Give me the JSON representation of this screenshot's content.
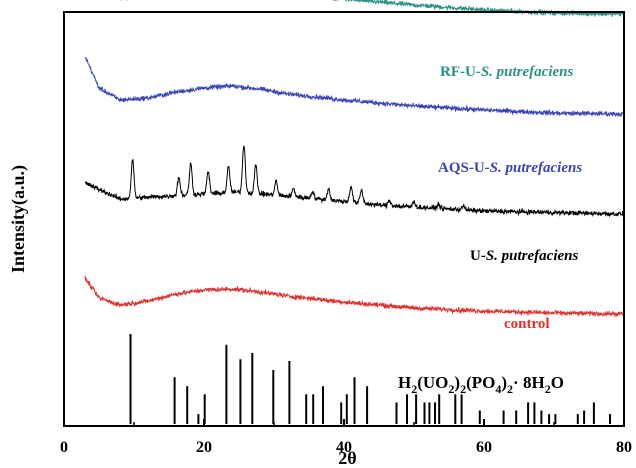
{
  "chart_data": {
    "type": "line",
    "xlabel": "2θ",
    "ylabel": "Intensity(a.u.)",
    "xlim": [
      0,
      80
    ],
    "xticks": [
      0,
      20,
      40,
      60,
      80
    ],
    "x_range_measured": [
      3,
      80
    ],
    "y_units": "arbitrary",
    "grid": false,
    "legend": "inline labels at right of each curve",
    "series": [
      {
        "name": "RF-U-S. putrefaciens",
        "label_parts": [
          "RF-U-",
          "S. putrefaciens"
        ],
        "color": "#2a9187",
        "profile": "amorphous",
        "offset": 3.0,
        "x": [
          3,
          5,
          8,
          12,
          16,
          20,
          24,
          28,
          32,
          40,
          50,
          60,
          70,
          80
        ],
        "values": [
          0.62,
          0.32,
          0.2,
          0.23,
          0.3,
          0.35,
          0.34,
          0.3,
          0.25,
          0.19,
          0.13,
          0.08,
          0.05,
          0.04
        ]
      },
      {
        "name": "AQS-U-S. putrefaciens",
        "label_parts": [
          "AQS-U-",
          "S. putrefaciens"
        ],
        "color": "#3a46b4",
        "profile": "amorphous",
        "offset": 2.0,
        "x": [
          3,
          5,
          8,
          12,
          16,
          20,
          24,
          28,
          32,
          40,
          50,
          60,
          70,
          80
        ],
        "values": [
          0.62,
          0.3,
          0.18,
          0.2,
          0.26,
          0.3,
          0.32,
          0.29,
          0.24,
          0.18,
          0.12,
          0.08,
          0.05,
          0.04
        ]
      },
      {
        "name": "U-S. putrefaciens",
        "label_parts": [
          "U-",
          "S. putrefaciens"
        ],
        "color": "#000000",
        "profile": "crystalline",
        "offset": 1.0,
        "x": [
          3,
          8,
          15,
          25,
          35,
          45,
          60,
          80
        ],
        "values": [
          0.35,
          0.19,
          0.22,
          0.26,
          0.2,
          0.13,
          0.07,
          0.04
        ],
        "peaks": [
          {
            "x": 9.8,
            "height": 0.38
          },
          {
            "x": 16.4,
            "height": 0.18
          },
          {
            "x": 18.1,
            "height": 0.31
          },
          {
            "x": 20.6,
            "height": 0.22
          },
          {
            "x": 23.5,
            "height": 0.26
          },
          {
            "x": 25.7,
            "height": 0.48
          },
          {
            "x": 27.4,
            "height": 0.28
          },
          {
            "x": 30.3,
            "height": 0.14
          },
          {
            "x": 32.8,
            "height": 0.08
          },
          {
            "x": 35.5,
            "height": 0.07
          },
          {
            "x": 37.8,
            "height": 0.11
          },
          {
            "x": 41.0,
            "height": 0.16
          },
          {
            "x": 42.5,
            "height": 0.13
          },
          {
            "x": 46.5,
            "height": 0.05
          },
          {
            "x": 50.0,
            "height": 0.05
          },
          {
            "x": 53.5,
            "height": 0.04
          },
          {
            "x": 57.0,
            "height": 0.04
          }
        ]
      },
      {
        "name": "control",
        "label_parts": [
          "control",
          ""
        ],
        "color": "#e03030",
        "profile": "amorphous",
        "offset": 0.0,
        "x": [
          3,
          5,
          8,
          12,
          16,
          20,
          24,
          28,
          32,
          40,
          50,
          60,
          70,
          80
        ],
        "values": [
          0.4,
          0.2,
          0.13,
          0.17,
          0.24,
          0.28,
          0.29,
          0.26,
          0.22,
          0.16,
          0.1,
          0.07,
          0.05,
          0.04
        ]
      }
    ],
    "reference_pattern": {
      "name": "H2(UO2)2(PO4)2·8H2O",
      "label_parts": [
        "H",
        "2",
        "(UO",
        "2",
        ")",
        "2",
        "(PO",
        "4",
        ")",
        "2",
        "·  8H",
        "2",
        "O"
      ],
      "color": "#000000",
      "type": "stick",
      "positions": [
        9.5,
        15.8,
        17.6,
        19.2,
        20.1,
        23.2,
        25.2,
        26.9,
        29.9,
        32.2,
        34.6,
        35.6,
        37.0,
        39.6,
        40.4,
        41.5,
        43.3,
        47.5,
        49.0,
        50.3,
        51.5,
        52.2,
        53.0,
        53.6,
        55.9,
        56.8,
        59.4,
        62.8,
        64.6,
        66.3,
        67.2,
        68.2,
        69.3,
        70.2,
        73.4,
        74.3,
        75.7,
        78.0
      ],
      "intensities": [
        1.0,
        0.52,
        0.42,
        0.11,
        0.33,
        0.88,
        0.72,
        0.79,
        0.6,
        0.7,
        0.33,
        0.33,
        0.42,
        0.24,
        0.33,
        0.52,
        0.42,
        0.24,
        0.33,
        0.33,
        0.24,
        0.24,
        0.24,
        0.33,
        0.33,
        0.33,
        0.15,
        0.15,
        0.15,
        0.24,
        0.24,
        0.15,
        0.11,
        0.11,
        0.11,
        0.15,
        0.24,
        0.11
      ]
    }
  }
}
